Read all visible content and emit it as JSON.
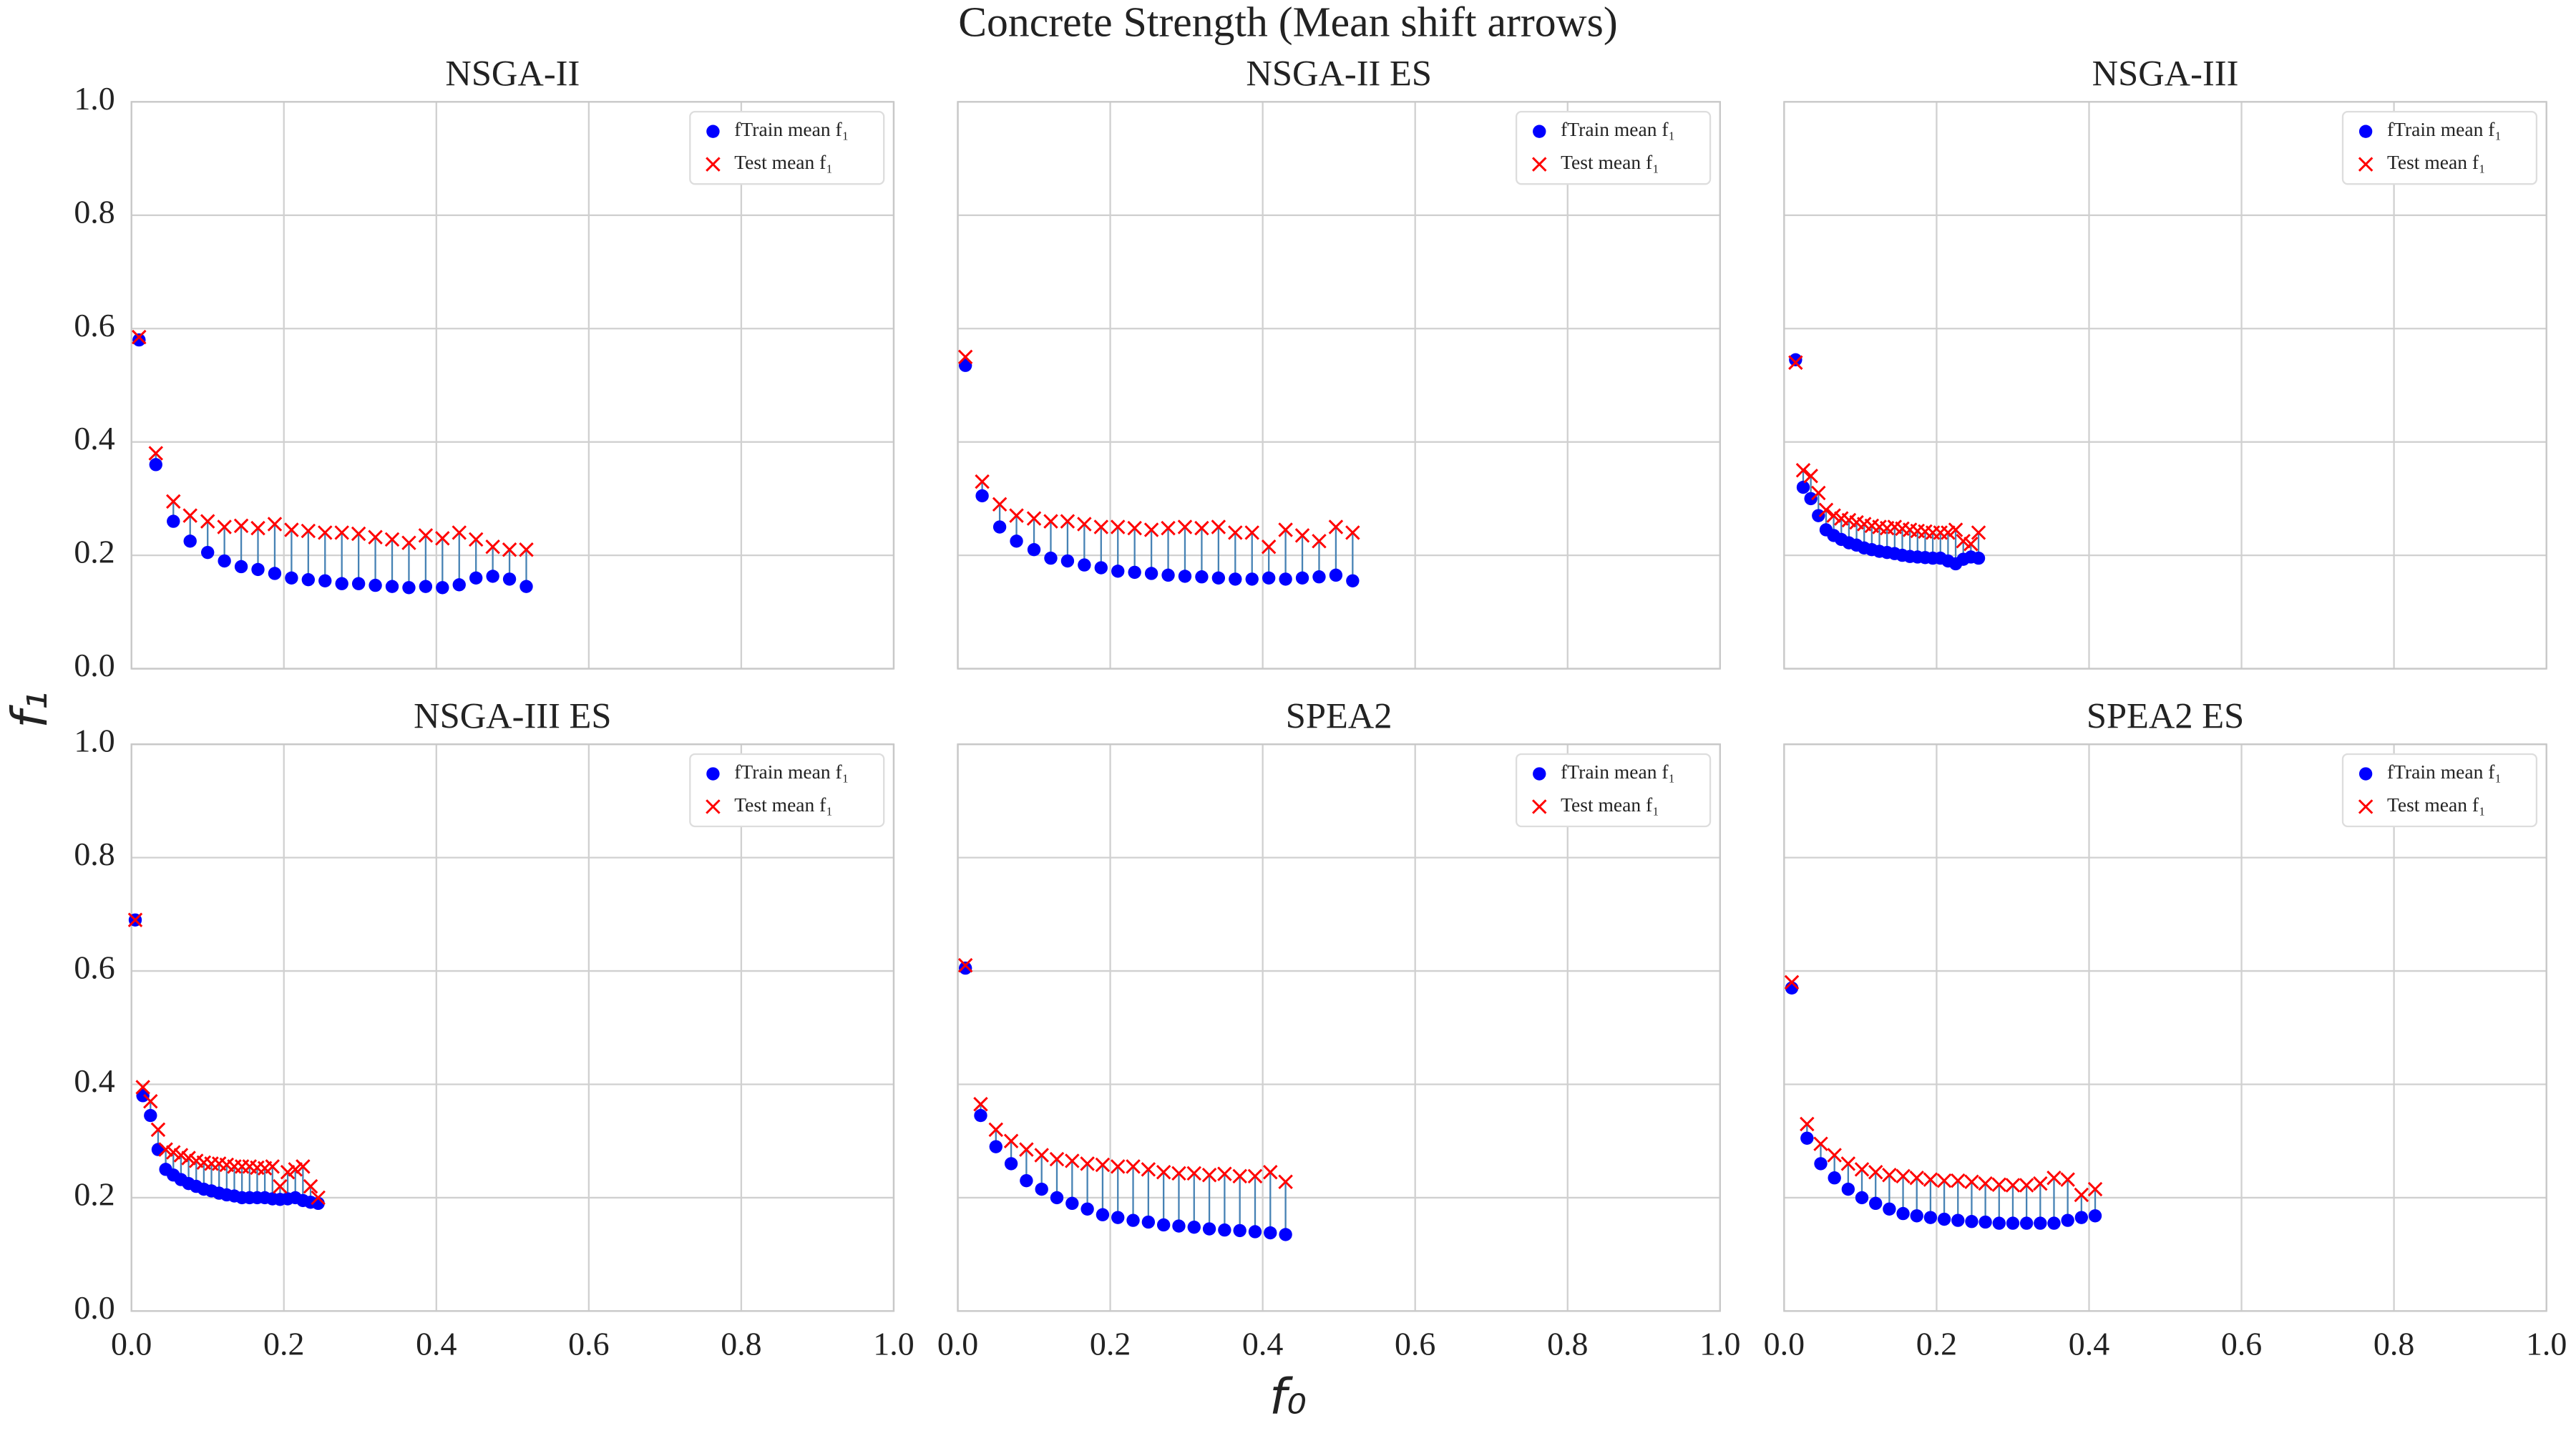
{
  "title": "Concrete Strength (Mean shift arrows)",
  "xlabel": "f₀",
  "ylabel": "f₁",
  "chart_data": [
    {
      "type": "scatter",
      "title": "NSGA-II",
      "legend": "upper right",
      "grid": true,
      "xlim": [
        0,
        1
      ],
      "ylim": [
        0,
        1
      ],
      "xticks": [
        {
          "value": 0,
          "label": "0.0"
        },
        0.2,
        0.4,
        0.6,
        0.8,
        {
          "value": 1,
          "label": "1.0"
        }
      ],
      "yticks": [
        {
          "value": 0,
          "label": "0.0"
        },
        0.2,
        0.4,
        0.6,
        0.8,
        {
          "value": 1,
          "label": "1.0"
        }
      ],
      "x": [
        0.01,
        0.032,
        0.055,
        0.077,
        0.1,
        0.122,
        0.144,
        0.166,
        0.188,
        0.21,
        0.232,
        0.254,
        0.276,
        0.298,
        0.32,
        0.342,
        0.364,
        0.386,
        0.408,
        0.43,
        0.452,
        0.474,
        0.496,
        0.518
      ],
      "series": [
        {
          "name": "fTrain mean f₁",
          "color": "#0000ff",
          "marker": "o",
          "values": [
            0.58,
            0.36,
            0.26,
            0.225,
            0.205,
            0.19,
            0.18,
            0.175,
            0.168,
            0.16,
            0.157,
            0.155,
            0.15,
            0.15,
            0.147,
            0.145,
            0.143,
            0.145,
            0.143,
            0.148,
            0.16,
            0.163,
            0.158,
            0.145
          ]
        },
        {
          "name": "Test mean f₁",
          "color": "#ff0000",
          "marker": "x",
          "values": [
            0.585,
            0.38,
            0.295,
            0.27,
            0.26,
            0.25,
            0.252,
            0.248,
            0.255,
            0.245,
            0.243,
            0.24,
            0.24,
            0.238,
            0.232,
            0.228,
            0.222,
            0.235,
            0.23,
            0.24,
            0.228,
            0.215,
            0.21,
            0.21
          ]
        }
      ]
    },
    {
      "type": "scatter",
      "title": "NSGA-II ES",
      "legend": "upper right",
      "grid": true,
      "xlim": [
        0,
        1
      ],
      "ylim": [
        0,
        1
      ],
      "xticks": [
        {
          "value": 0,
          "label": "0.0"
        },
        0.2,
        0.4,
        0.6,
        0.8,
        {
          "value": 1,
          "label": "1.0"
        }
      ],
      "yticks": [
        {
          "value": 0,
          "label": "0.0"
        },
        0.2,
        0.4,
        0.6,
        0.8,
        {
          "value": 1,
          "label": "1.0"
        }
      ],
      "x": [
        0.01,
        0.032,
        0.055,
        0.077,
        0.1,
        0.122,
        0.144,
        0.166,
        0.188,
        0.21,
        0.232,
        0.254,
        0.276,
        0.298,
        0.32,
        0.342,
        0.364,
        0.386,
        0.408,
        0.43,
        0.452,
        0.474,
        0.496,
        0.518
      ],
      "series": [
        {
          "name": "fTrain mean f₁",
          "color": "#0000ff",
          "marker": "o",
          "values": [
            0.535,
            0.305,
            0.25,
            0.225,
            0.21,
            0.195,
            0.19,
            0.183,
            0.178,
            0.172,
            0.17,
            0.168,
            0.165,
            0.163,
            0.162,
            0.16,
            0.158,
            0.158,
            0.16,
            0.158,
            0.16,
            0.162,
            0.165,
            0.155
          ]
        },
        {
          "name": "Test mean f₁",
          "color": "#ff0000",
          "marker": "x",
          "values": [
            0.55,
            0.33,
            0.29,
            0.27,
            0.265,
            0.26,
            0.26,
            0.255,
            0.25,
            0.25,
            0.248,
            0.245,
            0.248,
            0.25,
            0.248,
            0.25,
            0.24,
            0.24,
            0.215,
            0.245,
            0.235,
            0.225,
            0.25,
            0.24
          ]
        }
      ]
    },
    {
      "type": "scatter",
      "title": "NSGA-III",
      "legend": "upper right",
      "grid": true,
      "xlim": [
        0,
        1
      ],
      "ylim": [
        0,
        1
      ],
      "xticks": [
        {
          "value": 0,
          "label": "0.0"
        },
        0.2,
        0.4,
        0.6,
        0.8,
        {
          "value": 1,
          "label": "1.0"
        }
      ],
      "yticks": [
        {
          "value": 0,
          "label": "0.0"
        },
        0.2,
        0.4,
        0.6,
        0.8,
        {
          "value": 1,
          "label": "1.0"
        }
      ],
      "x": [
        0.015,
        0.025,
        0.035,
        0.045,
        0.055,
        0.065,
        0.075,
        0.085,
        0.095,
        0.105,
        0.115,
        0.125,
        0.135,
        0.145,
        0.155,
        0.165,
        0.175,
        0.185,
        0.195,
        0.205,
        0.215,
        0.225,
        0.235,
        0.245,
        0.255
      ],
      "series": [
        {
          "name": "fTrain mean f₁",
          "color": "#0000ff",
          "marker": "o",
          "values": [
            0.545,
            0.32,
            0.3,
            0.27,
            0.245,
            0.235,
            0.228,
            0.222,
            0.218,
            0.213,
            0.21,
            0.207,
            0.205,
            0.203,
            0.2,
            0.198,
            0.197,
            0.196,
            0.195,
            0.195,
            0.19,
            0.185,
            0.193,
            0.197,
            0.195
          ]
        },
        {
          "name": "Test mean f₁",
          "color": "#ff0000",
          "marker": "x",
          "values": [
            0.54,
            0.35,
            0.34,
            0.31,
            0.28,
            0.27,
            0.265,
            0.262,
            0.258,
            0.255,
            0.252,
            0.25,
            0.248,
            0.25,
            0.247,
            0.245,
            0.243,
            0.242,
            0.24,
            0.24,
            0.24,
            0.245,
            0.225,
            0.22,
            0.24
          ]
        }
      ]
    },
    {
      "type": "scatter",
      "title": "NSGA-III ES",
      "legend": "upper right",
      "grid": true,
      "xlim": [
        0,
        1
      ],
      "ylim": [
        0,
        1
      ],
      "xticks": [
        {
          "value": 0,
          "label": "0.0"
        },
        0.2,
        0.4,
        0.6,
        0.8,
        {
          "value": 1,
          "label": "1.0"
        }
      ],
      "yticks": [
        {
          "value": 0,
          "label": "0.0"
        },
        0.2,
        0.4,
        0.6,
        0.8,
        {
          "value": 1,
          "label": "1.0"
        }
      ],
      "x": [
        0.005,
        0.015,
        0.025,
        0.035,
        0.045,
        0.055,
        0.065,
        0.075,
        0.085,
        0.095,
        0.105,
        0.115,
        0.125,
        0.135,
        0.145,
        0.155,
        0.165,
        0.175,
        0.185,
        0.195,
        0.205,
        0.215,
        0.225,
        0.235,
        0.245
      ],
      "series": [
        {
          "name": "fTrain mean f₁",
          "color": "#0000ff",
          "marker": "o",
          "values": [
            0.69,
            0.38,
            0.345,
            0.285,
            0.25,
            0.24,
            0.232,
            0.225,
            0.22,
            0.215,
            0.212,
            0.208,
            0.205,
            0.203,
            0.2,
            0.2,
            0.2,
            0.2,
            0.198,
            0.197,
            0.198,
            0.2,
            0.195,
            0.192,
            0.19
          ]
        },
        {
          "name": "Test mean f₁",
          "color": "#ff0000",
          "marker": "x",
          "values": [
            0.69,
            0.395,
            0.37,
            0.32,
            0.285,
            0.28,
            0.275,
            0.27,
            0.265,
            0.262,
            0.26,
            0.26,
            0.258,
            0.255,
            0.255,
            0.255,
            0.253,
            0.252,
            0.255,
            0.22,
            0.245,
            0.25,
            0.255,
            0.22,
            0.2
          ]
        }
      ]
    },
    {
      "type": "scatter",
      "title": "SPEA2",
      "legend": "upper right",
      "grid": true,
      "xlim": [
        0,
        1
      ],
      "ylim": [
        0,
        1
      ],
      "xticks": [
        {
          "value": 0,
          "label": "0.0"
        },
        0.2,
        0.4,
        0.6,
        0.8,
        {
          "value": 1,
          "label": "1.0"
        }
      ],
      "yticks": [
        {
          "value": 0,
          "label": "0.0"
        },
        0.2,
        0.4,
        0.6,
        0.8,
        {
          "value": 1,
          "label": "1.0"
        }
      ],
      "x": [
        0.01,
        0.03,
        0.05,
        0.07,
        0.09,
        0.11,
        0.13,
        0.15,
        0.17,
        0.19,
        0.21,
        0.23,
        0.25,
        0.27,
        0.29,
        0.31,
        0.33,
        0.35,
        0.37,
        0.39,
        0.41,
        0.43
      ],
      "series": [
        {
          "name": "fTrain mean f₁",
          "color": "#0000ff",
          "marker": "o",
          "values": [
            0.605,
            0.345,
            0.29,
            0.26,
            0.23,
            0.215,
            0.2,
            0.19,
            0.18,
            0.17,
            0.165,
            0.16,
            0.157,
            0.152,
            0.15,
            0.148,
            0.145,
            0.143,
            0.142,
            0.14,
            0.138,
            0.135
          ]
        },
        {
          "name": "Test mean f₁",
          "color": "#ff0000",
          "marker": "x",
          "values": [
            0.61,
            0.365,
            0.32,
            0.3,
            0.285,
            0.275,
            0.268,
            0.265,
            0.26,
            0.258,
            0.255,
            0.255,
            0.25,
            0.245,
            0.243,
            0.243,
            0.24,
            0.242,
            0.238,
            0.238,
            0.245,
            0.228
          ]
        }
      ]
    },
    {
      "type": "scatter",
      "title": "SPEA2 ES",
      "legend": "upper right",
      "grid": true,
      "xlim": [
        0,
        1
      ],
      "ylim": [
        0,
        1
      ],
      "xticks": [
        {
          "value": 0,
          "label": "0.0"
        },
        0.2,
        0.4,
        0.6,
        0.8,
        {
          "value": 1,
          "label": "1.0"
        }
      ],
      "yticks": [
        {
          "value": 0,
          "label": "0.0"
        },
        0.2,
        0.4,
        0.6,
        0.8,
        {
          "value": 1,
          "label": "1.0"
        }
      ],
      "x": [
        0.01,
        0.03,
        0.048,
        0.066,
        0.084,
        0.102,
        0.12,
        0.138,
        0.156,
        0.174,
        0.192,
        0.21,
        0.228,
        0.246,
        0.264,
        0.282,
        0.3,
        0.318,
        0.336,
        0.354,
        0.372,
        0.39,
        0.408
      ],
      "series": [
        {
          "name": "fTrain mean f₁",
          "color": "#0000ff",
          "marker": "o",
          "values": [
            0.57,
            0.305,
            0.26,
            0.235,
            0.215,
            0.2,
            0.19,
            0.18,
            0.172,
            0.168,
            0.165,
            0.162,
            0.16,
            0.158,
            0.157,
            0.155,
            0.155,
            0.155,
            0.155,
            0.155,
            0.16,
            0.165,
            0.168
          ]
        },
        {
          "name": "Test mean f₁",
          "color": "#ff0000",
          "marker": "x",
          "values": [
            0.58,
            0.33,
            0.295,
            0.275,
            0.26,
            0.25,
            0.245,
            0.24,
            0.238,
            0.235,
            0.232,
            0.23,
            0.23,
            0.228,
            0.225,
            0.223,
            0.222,
            0.222,
            0.225,
            0.235,
            0.232,
            0.205,
            0.215
          ]
        }
      ]
    }
  ]
}
